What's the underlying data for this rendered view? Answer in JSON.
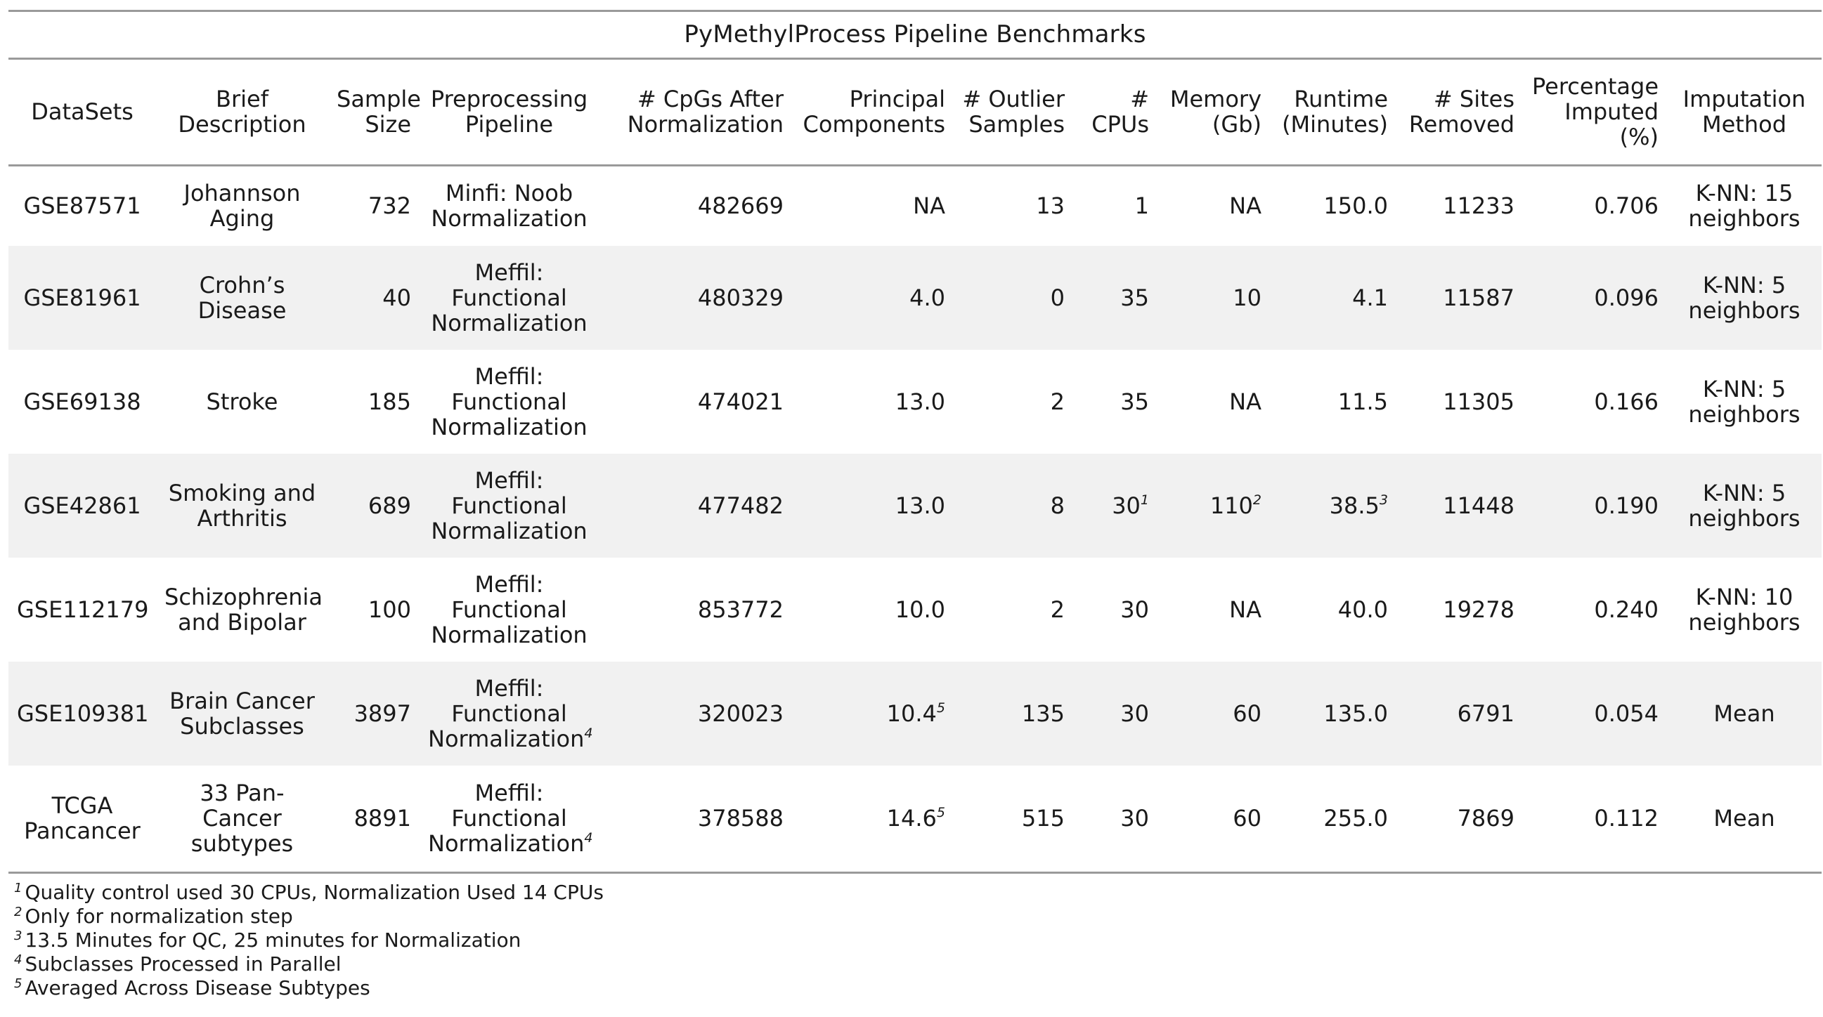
{
  "title": "PyMethylProcess Pipeline Benchmarks",
  "columns": [
    {
      "key": "dataset",
      "label_lines": [
        "DataSets"
      ]
    },
    {
      "key": "description",
      "label_lines": [
        "Brief",
        "Description"
      ]
    },
    {
      "key": "sample_size",
      "label_lines": [
        "Sample",
        "Size"
      ]
    },
    {
      "key": "pipeline",
      "label_lines": [
        "Preprocessing",
        "Pipeline"
      ]
    },
    {
      "key": "cpgs",
      "label_lines": [
        "# CpGs After",
        "Normalization"
      ]
    },
    {
      "key": "pcs",
      "label_lines": [
        "Principal",
        "Components"
      ]
    },
    {
      "key": "outliers",
      "label_lines": [
        "# Outlier",
        "Samples"
      ]
    },
    {
      "key": "cpus",
      "label_lines": [
        "#",
        "CPUs"
      ]
    },
    {
      "key": "memory",
      "label_lines": [
        "Memory",
        "(Gb)"
      ]
    },
    {
      "key": "runtime",
      "label_lines": [
        "Runtime",
        "(Minutes)"
      ]
    },
    {
      "key": "sites_removed",
      "label_lines": [
        "# Sites",
        "Removed"
      ]
    },
    {
      "key": "pct_imputed",
      "label_lines": [
        "Percentage",
        "Imputed",
        "(%)"
      ]
    },
    {
      "key": "imputation",
      "label_lines": [
        "Imputation",
        "Method"
      ]
    }
  ],
  "rows": [
    {
      "dataset": [
        "GSE87571"
      ],
      "description": [
        "Johannson",
        "Aging"
      ],
      "sample_size": "732",
      "pipeline": [
        "Minfi: Noob",
        "Normalization"
      ],
      "pipeline_sup": "",
      "cpgs": "482669",
      "pcs": "NA",
      "pcs_sup": "",
      "outliers": "13",
      "cpus": "1",
      "cpus_sup": "",
      "memory": "NA",
      "memory_sup": "",
      "runtime": "150.0",
      "runtime_sup": "",
      "sites_removed": "11233",
      "pct_imputed": "0.706",
      "imputation": [
        "K-NN: 15",
        "neighbors"
      ]
    },
    {
      "dataset": [
        "GSE81961"
      ],
      "description": [
        "Crohn’s",
        "Disease"
      ],
      "sample_size": "40",
      "pipeline": [
        "Meffil:",
        "Functional",
        "Normalization"
      ],
      "pipeline_sup": "",
      "cpgs": "480329",
      "pcs": "4.0",
      "pcs_sup": "",
      "outliers": "0",
      "cpus": "35",
      "cpus_sup": "",
      "memory": "10",
      "memory_sup": "",
      "runtime": "4.1",
      "runtime_sup": "",
      "sites_removed": "11587",
      "pct_imputed": "0.096",
      "imputation": [
        "K-NN: 5",
        "neighbors"
      ]
    },
    {
      "dataset": [
        "GSE69138"
      ],
      "description": [
        "Stroke"
      ],
      "sample_size": "185",
      "pipeline": [
        "Meffil:",
        "Functional",
        "Normalization"
      ],
      "pipeline_sup": "",
      "cpgs": "474021",
      "pcs": "13.0",
      "pcs_sup": "",
      "outliers": "2",
      "cpus": "35",
      "cpus_sup": "",
      "memory": "NA",
      "memory_sup": "",
      "runtime": "11.5",
      "runtime_sup": "",
      "sites_removed": "11305",
      "pct_imputed": "0.166",
      "imputation": [
        "K-NN: 5",
        "neighbors"
      ]
    },
    {
      "dataset": [
        "GSE42861"
      ],
      "description": [
        "Smoking and",
        "Arthritis"
      ],
      "sample_size": "689",
      "pipeline": [
        "Meffil:",
        "Functional",
        "Normalization"
      ],
      "pipeline_sup": "",
      "cpgs": "477482",
      "pcs": "13.0",
      "pcs_sup": "",
      "outliers": "8",
      "cpus": "30",
      "cpus_sup": "1",
      "memory": "110",
      "memory_sup": "2",
      "runtime": "38.5",
      "runtime_sup": "3",
      "sites_removed": "11448",
      "pct_imputed": "0.190",
      "imputation": [
        "K-NN: 5",
        "neighbors"
      ]
    },
    {
      "dataset": [
        "GSE112179"
      ],
      "description": [
        "Schizophrenia",
        "and Bipolar"
      ],
      "sample_size": "100",
      "pipeline": [
        "Meffil:",
        "Functional",
        "Normalization"
      ],
      "pipeline_sup": "",
      "cpgs": "853772",
      "pcs": "10.0",
      "pcs_sup": "",
      "outliers": "2",
      "cpus": "30",
      "cpus_sup": "",
      "memory": "NA",
      "memory_sup": "",
      "runtime": "40.0",
      "runtime_sup": "",
      "sites_removed": "19278",
      "pct_imputed": "0.240",
      "imputation": [
        "K-NN: 10",
        "neighbors"
      ]
    },
    {
      "dataset": [
        "GSE109381"
      ],
      "description": [
        "Brain Cancer",
        "Subclasses"
      ],
      "sample_size": "3897",
      "pipeline": [
        "Meffil:",
        "Functional",
        "Normalization"
      ],
      "pipeline_sup": "4",
      "cpgs": "320023",
      "pcs": "10.4",
      "pcs_sup": "5",
      "outliers": "135",
      "cpus": "30",
      "cpus_sup": "",
      "memory": "60",
      "memory_sup": "",
      "runtime": "135.0",
      "runtime_sup": "",
      "sites_removed": "6791",
      "pct_imputed": "0.054",
      "imputation": [
        "Mean"
      ]
    },
    {
      "dataset": [
        "TCGA",
        "Pancancer"
      ],
      "description": [
        "33 Pan-",
        "Cancer",
        "subtypes"
      ],
      "sample_size": "8891",
      "pipeline": [
        "Meffil:",
        "Functional",
        "Normalization"
      ],
      "pipeline_sup": "4",
      "cpgs": "378588",
      "pcs": "14.6",
      "pcs_sup": "5",
      "outliers": "515",
      "cpus": "30",
      "cpus_sup": "",
      "memory": "60",
      "memory_sup": "",
      "runtime": "255.0",
      "runtime_sup": "",
      "sites_removed": "7869",
      "pct_imputed": "0.112",
      "imputation": [
        "Mean"
      ]
    }
  ],
  "footnotes": [
    {
      "mark": "1",
      "text": "Quality control used 30 CPUs, Normalization Used 14 CPUs"
    },
    {
      "mark": "2",
      "text": "Only for normalization step"
    },
    {
      "mark": "3",
      "text": "13.5 Minutes for QC, 25 minutes for Normalization"
    },
    {
      "mark": "4",
      "text": "Subclasses Processed in Parallel"
    },
    {
      "mark": "5",
      "text": "Averaged Across Disease Subtypes"
    }
  ]
}
